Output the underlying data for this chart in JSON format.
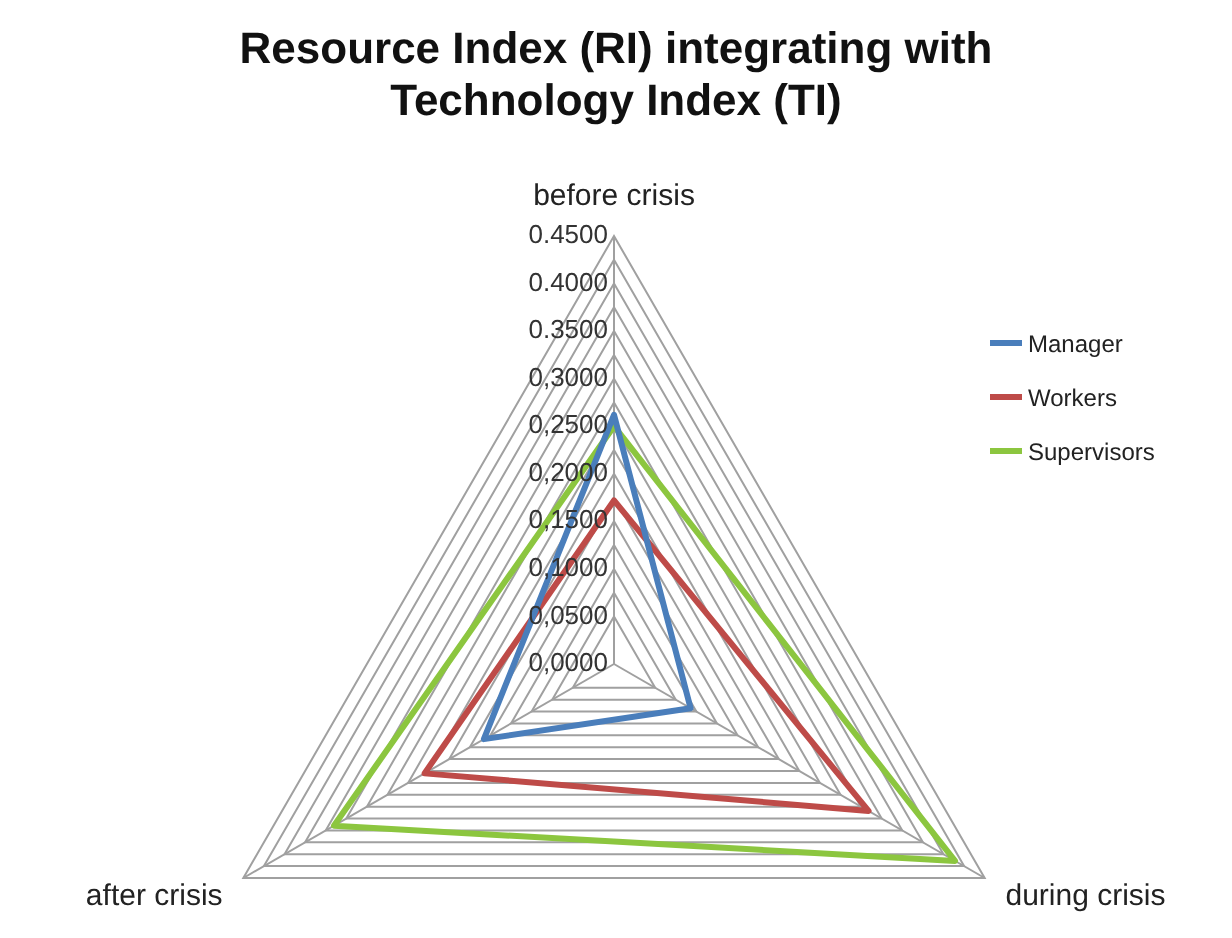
{
  "chart_data": {
    "type": "radar",
    "title": "Resource Index (RI) integrating with Technology Index (TI)",
    "categories": [
      "before crisis",
      "during crisis",
      "after crisis"
    ],
    "series": [
      {
        "name": "Manager",
        "color": "#4a7ebb",
        "values": [
          0.262,
          0.093,
          0.158
        ]
      },
      {
        "name": "Workers",
        "color": "#be4b48",
        "values": [
          0.172,
          0.309,
          0.23
        ]
      },
      {
        "name": "Supervisors",
        "color": "#8cc63f",
        "values": [
          0.25,
          0.414,
          0.34
        ]
      }
    ],
    "ylim": [
      0,
      0.45
    ],
    "yticks": [
      {
        "value": 0,
        "label": "0,0000"
      },
      {
        "value": 0.05,
        "label": "0,0500"
      },
      {
        "value": 0.1,
        "label": "0,1000"
      },
      {
        "value": 0.15,
        "label": "0,1500"
      },
      {
        "value": 0.2,
        "label": "0,2000"
      },
      {
        "value": 0.25,
        "label": "0,2500"
      },
      {
        "value": 0.3,
        "label": "0,3000"
      },
      {
        "value": 0.35,
        "label": "0.3500"
      },
      {
        "value": 0.4,
        "label": "0.4000"
      },
      {
        "value": 0.45,
        "label": "0.4500"
      }
    ],
    "legend": "top right",
    "marker": "none",
    "line_style": "solid",
    "grid": true
  }
}
